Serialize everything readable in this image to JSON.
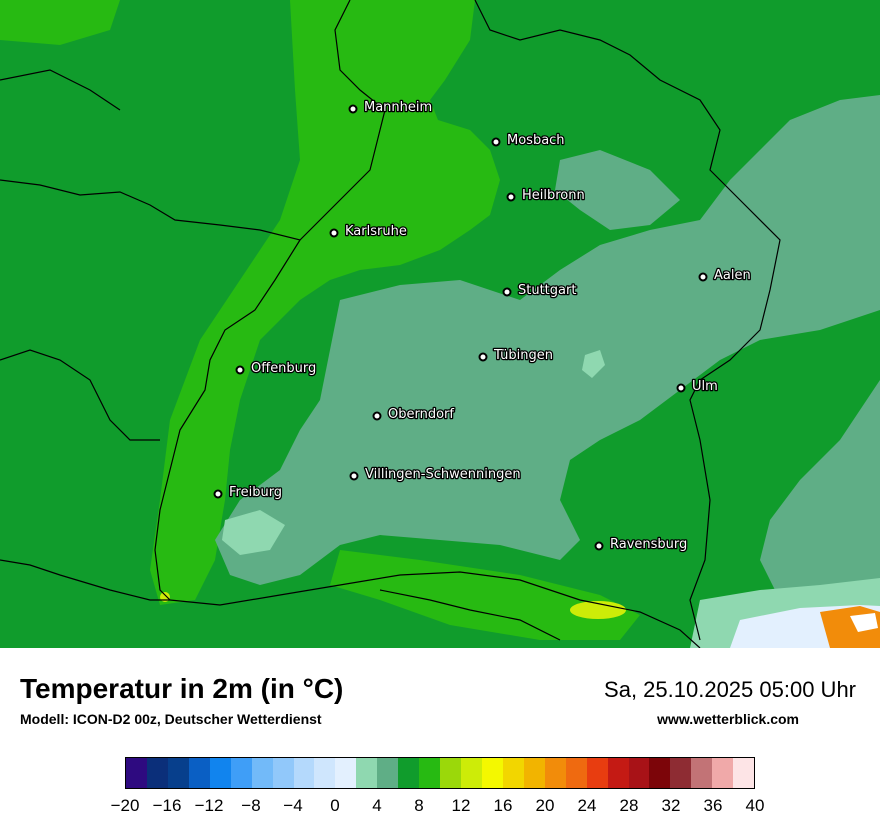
{
  "map": {
    "cities": [
      {
        "name": "Mannheim"
      },
      {
        "name": "Mosbach"
      },
      {
        "name": "Heilbronn"
      },
      {
        "name": "Karlsruhe"
      },
      {
        "name": "Aalen"
      },
      {
        "name": "Stuttgart"
      },
      {
        "name": "Tübingen"
      },
      {
        "name": "Offenburg"
      },
      {
        "name": "Ulm"
      },
      {
        "name": "Oberndorf"
      },
      {
        "name": "Villingen-Schwenningen"
      },
      {
        "name": "Freiburg"
      },
      {
        "name": "Ravensburg"
      }
    ]
  },
  "header": {
    "title": "Temperatur in 2m (in °C)",
    "model": "Modell: ICON-D2 00z, Deutscher Wetterdienst",
    "datetime": "Sa, 25.10.2025 05:00 Uhr",
    "website": "www.wetterblick.com"
  },
  "legend": {
    "colors": [
      "#2e0a80",
      "#0b2f7a",
      "#073f8c",
      "#0a5fc4",
      "#1184ee",
      "#3f9ef7",
      "#72baf9",
      "#91c8fa",
      "#b4d9fc",
      "#cfe6fd",
      "#e3f0fe",
      "#8fd8b0",
      "#5fae86",
      "#109c2c",
      "#27ba12",
      "#9bd80a",
      "#cdec08",
      "#f4f800",
      "#f2d600",
      "#f2b400",
      "#f28c0a",
      "#ef6a10",
      "#e83d10",
      "#c41a14",
      "#a81217",
      "#7c0509",
      "#8e2c33",
      "#c27376",
      "#f0a9a9",
      "#fde4e6"
    ],
    "ticks": [
      "−20",
      "−16",
      "−12",
      "−8",
      "−4",
      "0",
      "4",
      "8",
      "12",
      "16",
      "20",
      "24",
      "28",
      "32",
      "36",
      "40"
    ],
    "min": -20,
    "max": 40
  }
}
